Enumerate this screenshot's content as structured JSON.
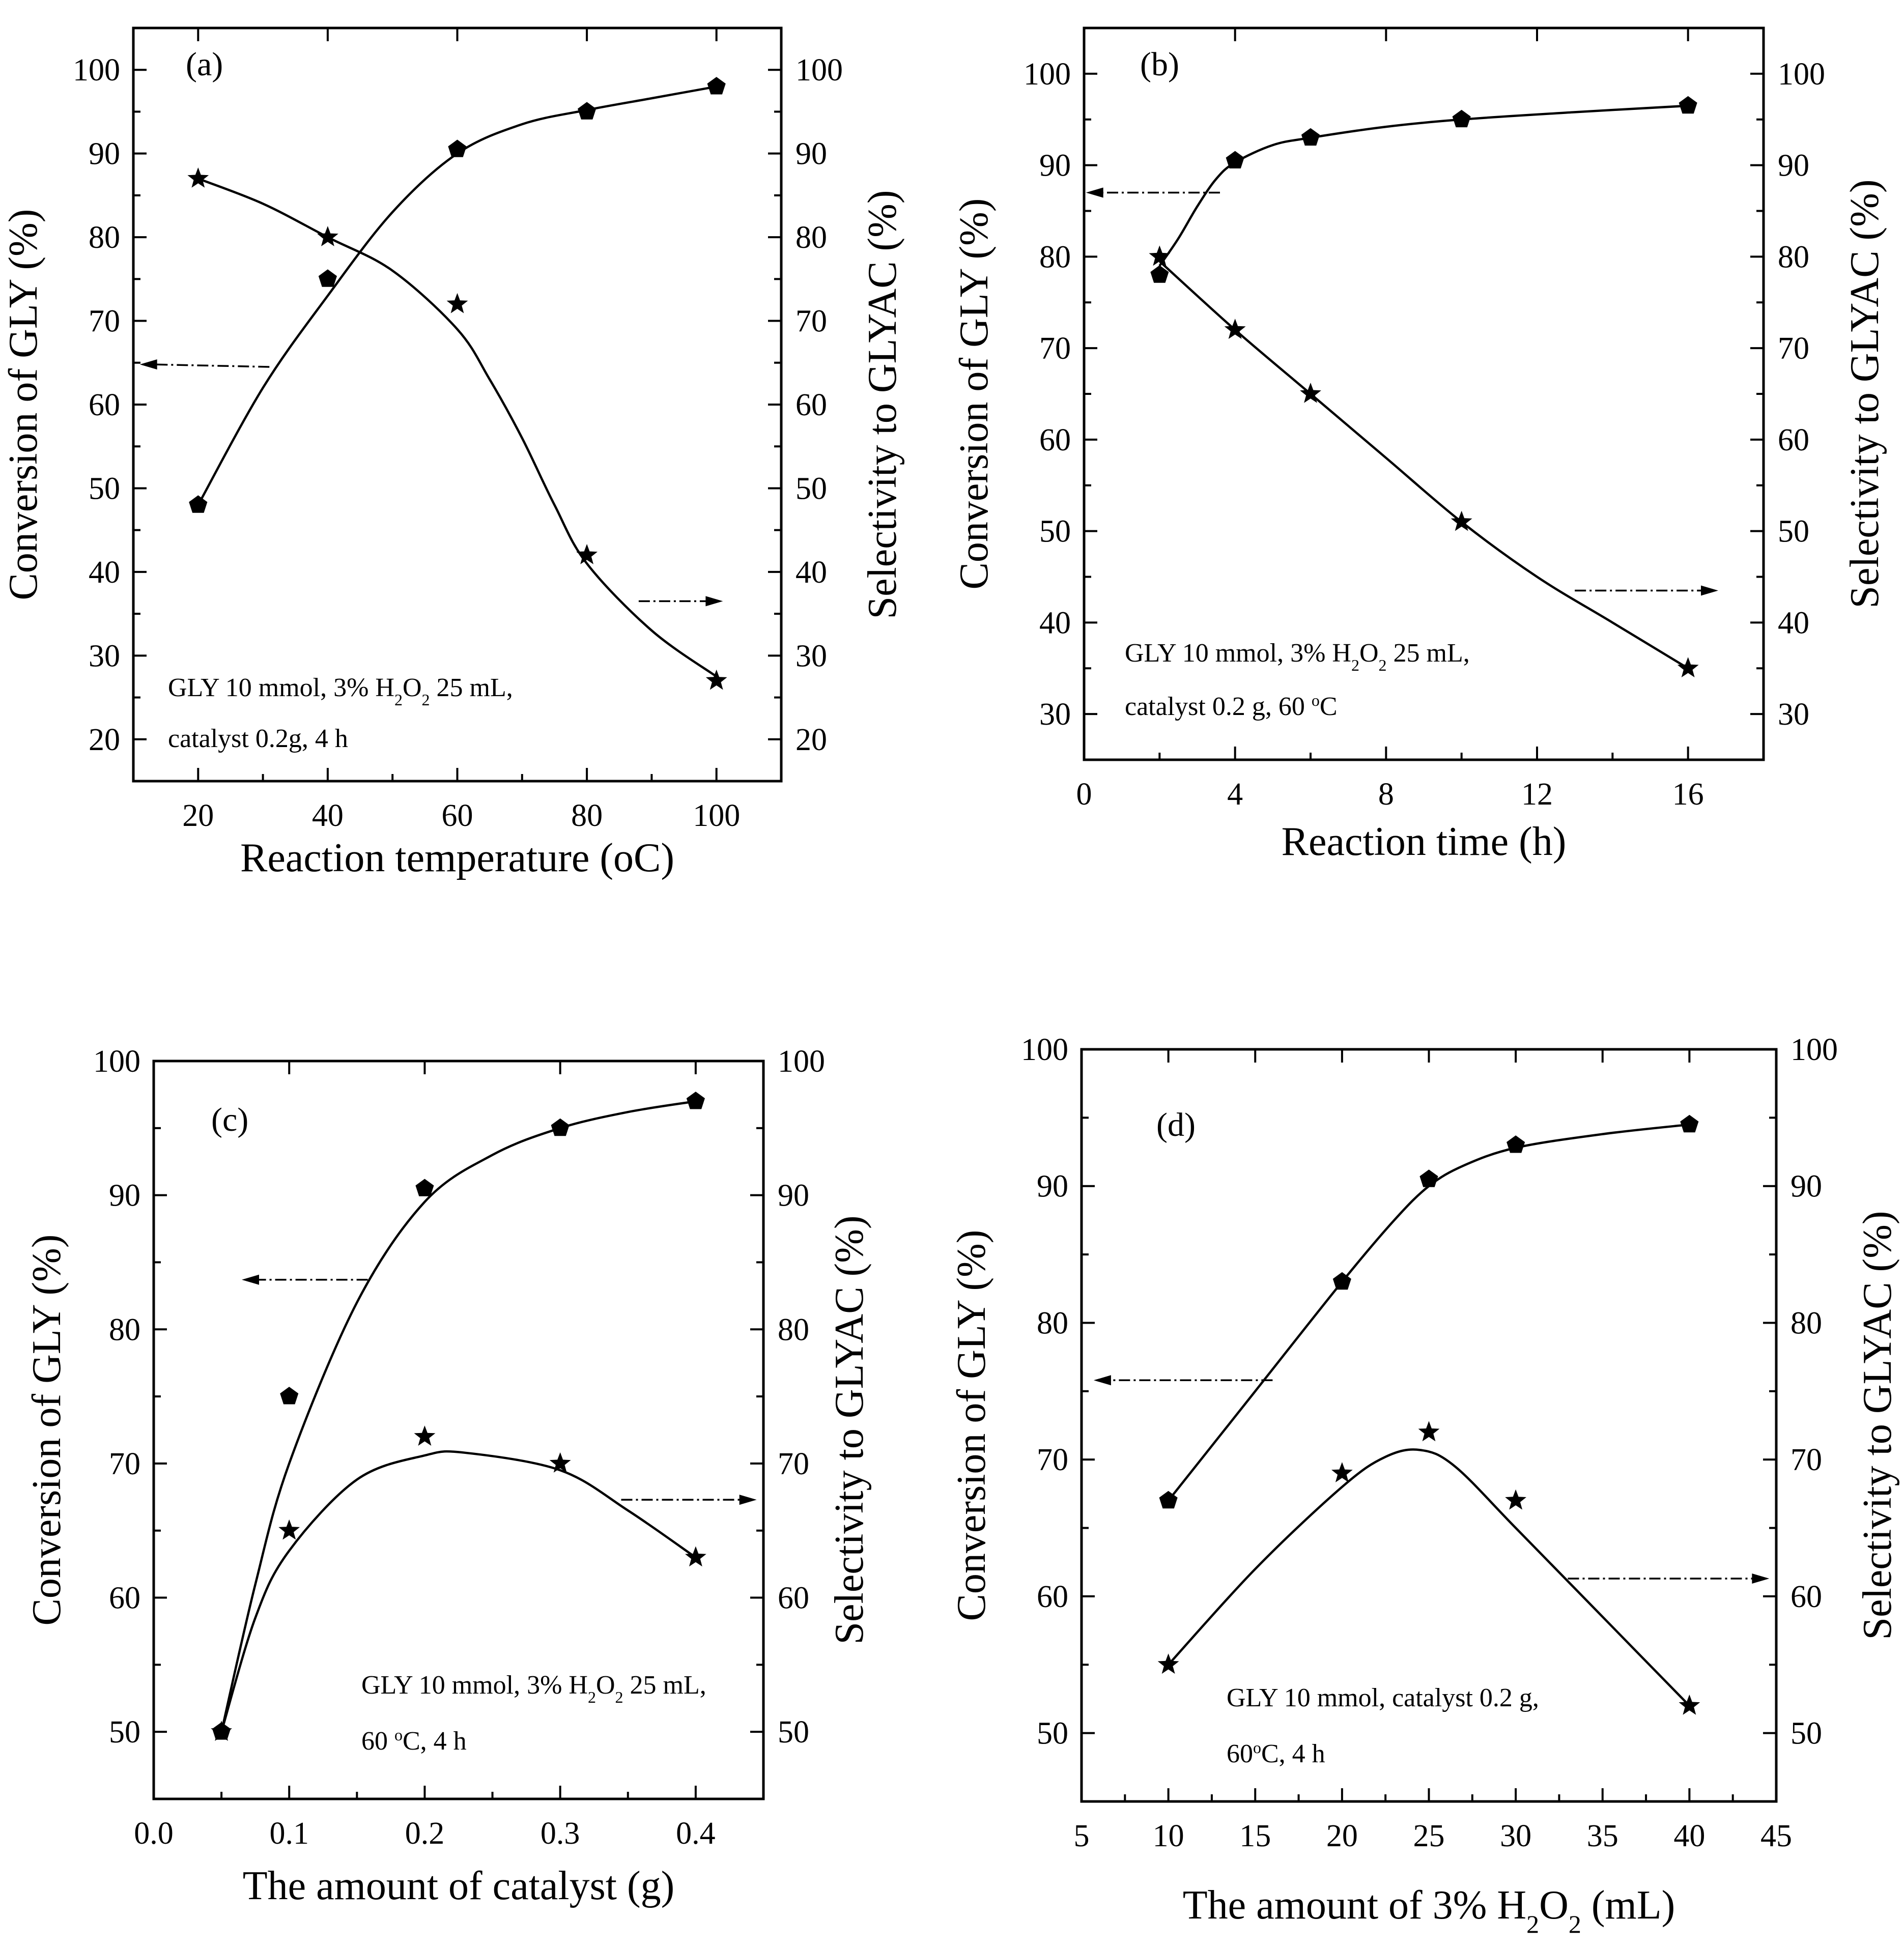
{
  "chart_data": [
    {
      "type": "scatter",
      "panel_label": "(a)",
      "title": "",
      "xlabel": "Reaction temperature (°C)",
      "xlabel_parts": [
        "Reaction temperature (",
        "o",
        "C)"
      ],
      "ylabel": "Conversion of GLY (%)",
      "ylabel_right": "Selectivity to GLYAC (%)",
      "xlim": [
        10,
        110
      ],
      "ylim": [
        15,
        105
      ],
      "ylim_right": [
        15,
        105
      ],
      "xticks": [
        20,
        40,
        60,
        80,
        100
      ],
      "yticks": [
        20,
        30,
        40,
        50,
        60,
        70,
        80,
        90,
        100
      ],
      "yticks_right": [
        20,
        30,
        40,
        50,
        60,
        70,
        80,
        90,
        100
      ],
      "series": [
        {
          "name": "Conversion of GLY",
          "axis": "left",
          "marker": "pentagon",
          "x": [
            20,
            40,
            60,
            80,
            100
          ],
          "values": [
            48,
            75,
            90.5,
            95,
            98
          ]
        },
        {
          "name": "Selectivity to GLYAC",
          "axis": "right",
          "marker": "star",
          "x": [
            20,
            40,
            60,
            80,
            100
          ],
          "values": [
            87,
            80,
            72,
            42,
            27
          ]
        }
      ],
      "fit_curves": [
        {
          "axis": "left",
          "x": [
            20,
            30,
            40,
            50,
            60,
            70,
            80,
            90,
            100
          ],
          "values": [
            48,
            62,
            73,
            83,
            90,
            93.5,
            95.2,
            96.6,
            98
          ]
        },
        {
          "axis": "right",
          "x": [
            20,
            30,
            40,
            50,
            60,
            65,
            70,
            75,
            80,
            90,
            100
          ],
          "values": [
            87,
            84,
            80,
            76,
            69,
            63,
            56,
            48,
            41,
            33,
            27.5
          ]
        }
      ],
      "annotation_lines": [
        [
          "GLY 10 mmol, 3% H",
          {
            "sub": "2"
          },
          "O",
          {
            "sub": "2"
          },
          " 25 mL,"
        ],
        [
          "catalyst 0.2g, 4 h"
        ]
      ],
      "arrows": [
        {
          "axis": "left",
          "direction": "left",
          "x": [
            31,
            11
          ],
          "y": [
            64.5,
            64.8
          ]
        },
        {
          "axis": "left",
          "direction": "right",
          "x": [
            88,
            101
          ],
          "y": [
            36.5,
            36.5
          ]
        }
      ]
    },
    {
      "type": "scatter",
      "panel_label": "(b)",
      "title": "",
      "xlabel": "Reaction time (h)",
      "xlabel_parts": [
        "Reaction time (h)"
      ],
      "ylabel": "Conversion of GLY (%)",
      "ylabel_right": "Selectivity to GLYAC (%)",
      "xlim": [
        0,
        18
      ],
      "ylim": [
        25,
        105
      ],
      "ylim_right": [
        25,
        105
      ],
      "xticks": [
        0,
        4,
        8,
        12,
        16
      ],
      "yticks": [
        30,
        40,
        50,
        60,
        70,
        80,
        90,
        100
      ],
      "yticks_right": [
        30,
        40,
        50,
        60,
        70,
        80,
        90,
        100
      ],
      "series": [
        {
          "name": "Conversion of GLY",
          "axis": "left",
          "marker": "pentagon",
          "x": [
            2,
            4,
            6,
            10,
            16
          ],
          "values": [
            78,
            90.5,
            93,
            95,
            96.5
          ]
        },
        {
          "name": "Selectivity to GLYAC",
          "axis": "right",
          "marker": "star",
          "x": [
            2,
            4,
            6,
            10,
            16
          ],
          "values": [
            80,
            72,
            65,
            51,
            35
          ]
        }
      ],
      "fit_curves": [
        {
          "axis": "left",
          "x": [
            2,
            2.5,
            3,
            3.5,
            4,
            5,
            6,
            8,
            10,
            13,
            16
          ],
          "values": [
            79,
            82,
            85.5,
            88.5,
            90.3,
            92.2,
            93,
            94.2,
            95,
            95.8,
            96.5
          ]
        },
        {
          "axis": "right",
          "x": [
            2,
            4,
            6,
            8,
            10,
            12,
            14,
            16
          ],
          "values": [
            79.5,
            72,
            65,
            58,
            51,
            45,
            40,
            35
          ]
        }
      ],
      "annotation_lines": [
        [
          "GLY 10 mmol, 3% H",
          {
            "sub": "2"
          },
          "O",
          {
            "sub": "2"
          },
          " 25 mL,"
        ],
        [
          "catalyst 0.2 g, 60 ",
          {
            "sup": "o"
          },
          "C"
        ]
      ],
      "arrows": [
        {
          "axis": "left",
          "direction": "left",
          "x": [
            3.6,
            0.05
          ],
          "y": [
            87,
            87
          ]
        },
        {
          "axis": "left",
          "direction": "right",
          "x": [
            13,
            16.8
          ],
          "y": [
            43.5,
            43.5
          ]
        }
      ]
    },
    {
      "type": "scatter",
      "panel_label": "(c)",
      "title": "",
      "xlabel": "The amount of catalyst (g)",
      "xlabel_parts": [
        "The amount of catalyst (g)"
      ],
      "ylabel": "Conversion of GLY (%)",
      "ylabel_right": "Selectivity to GLYAC (%)",
      "xlim": [
        0.0,
        0.45
      ],
      "ylim": [
        45,
        100
      ],
      "ylim_right": [
        45,
        100
      ],
      "xticks": [
        0.0,
        0.1,
        0.2,
        0.3,
        0.4
      ],
      "xtick_labels": [
        "0.0",
        "0.1",
        "0.2",
        "0.3",
        "0.4"
      ],
      "yticks": [
        50,
        60,
        70,
        80,
        90,
        100
      ],
      "yticks_right": [
        50,
        60,
        70,
        80,
        90,
        100
      ],
      "series": [
        {
          "name": "Conversion of GLY",
          "axis": "left",
          "marker": "pentagon",
          "x": [
            0.05,
            0.1,
            0.2,
            0.3,
            0.4
          ],
          "values": [
            50,
            75,
            90.5,
            95,
            97
          ]
        },
        {
          "name": "Selectivity to GLYAC",
          "axis": "right",
          "marker": "star",
          "x": [
            0.05,
            0.1,
            0.2,
            0.3,
            0.4
          ],
          "values": [
            50,
            65,
            72,
            70,
            63
          ]
        }
      ],
      "fit_curves": [
        {
          "axis": "left",
          "x": [
            0.05,
            0.075,
            0.1,
            0.15,
            0.2,
            0.25,
            0.3,
            0.35,
            0.4
          ],
          "values": [
            50,
            61,
            70,
            82,
            89.5,
            93,
            95,
            96.2,
            97
          ]
        },
        {
          "axis": "right",
          "x": [
            0.05,
            0.075,
            0.1,
            0.15,
            0.2,
            0.23,
            0.3,
            0.35,
            0.4
          ],
          "values": [
            50,
            58.5,
            63.5,
            68.8,
            70.6,
            70.8,
            69.5,
            66.5,
            63
          ]
        }
      ],
      "annotation_lines": [
        [
          "GLY 10 mmol, 3% H",
          {
            "sub": "2"
          },
          "O",
          {
            "sub": "2"
          },
          " 25 mL,"
        ],
        [
          "60 ",
          {
            "sup": "o"
          },
          "C, 4 h"
        ]
      ],
      "arrows": [
        {
          "axis": "left",
          "direction": "left",
          "x": [
            0.158,
            0.065
          ],
          "y": [
            83.7,
            83.7
          ]
        },
        {
          "axis": "left",
          "direction": "right",
          "x": [
            0.345,
            0.445
          ],
          "y": [
            67.3,
            67.3
          ]
        }
      ]
    },
    {
      "type": "scatter",
      "panel_label": "(d)",
      "title": "",
      "xlabel": "The amount of 3% H2O2 (mL)",
      "xlabel_parts": [
        "The amount of 3% H",
        {
          "sub": "2"
        },
        "O",
        {
          "sub": "2"
        },
        " (mL)"
      ],
      "ylabel": "Conversion of GLY (%)",
      "ylabel_right": "Selectivity to GLYAC (%)",
      "xlim": [
        5,
        45
      ],
      "ylim": [
        45,
        100
      ],
      "ylim_right": [
        45,
        100
      ],
      "xticks": [
        5,
        10,
        15,
        20,
        25,
        30,
        35,
        40,
        45
      ],
      "yticks": [
        50,
        60,
        70,
        80,
        90,
        100
      ],
      "yticks_right": [
        50,
        60,
        70,
        80,
        90,
        100
      ],
      "series": [
        {
          "name": "Conversion of GLY",
          "axis": "left",
          "marker": "pentagon",
          "x": [
            10,
            20,
            25,
            30,
            40
          ],
          "values": [
            67,
            83,
            90.5,
            93,
            94.5
          ]
        },
        {
          "name": "Selectivity to GLYAC",
          "axis": "right",
          "marker": "star",
          "x": [
            10,
            20,
            25,
            30,
            40
          ],
          "values": [
            55,
            69,
            72,
            67,
            52
          ]
        }
      ],
      "fit_curves": [
        {
          "axis": "left",
          "x": [
            10,
            15,
            20,
            23,
            25,
            27,
            30,
            35,
            40
          ],
          "values": [
            67,
            75,
            83,
            87.5,
            90,
            91.5,
            92.8,
            93.8,
            94.5
          ]
        },
        {
          "axis": "right",
          "x": [
            10,
            15,
            20,
            22.5,
            24.5,
            26.5,
            30,
            35,
            40
          ],
          "values": [
            55,
            62,
            68,
            70.2,
            70.7,
            69.5,
            65,
            58.5,
            52
          ]
        }
      ],
      "annotation_lines": [
        [
          "GLY 10 mmol, catalyst 0.2 g,"
        ],
        [
          "60",
          {
            "sup": "o"
          },
          "C, 4 h"
        ]
      ],
      "arrows": [
        {
          "axis": "left",
          "direction": "left",
          "x": [
            16,
            5.7
          ],
          "y": [
            75.8,
            75.8
          ]
        },
        {
          "axis": "left",
          "direction": "right",
          "x": [
            33,
            44.6
          ],
          "y": [
            61.3,
            61.3
          ]
        }
      ]
    }
  ]
}
